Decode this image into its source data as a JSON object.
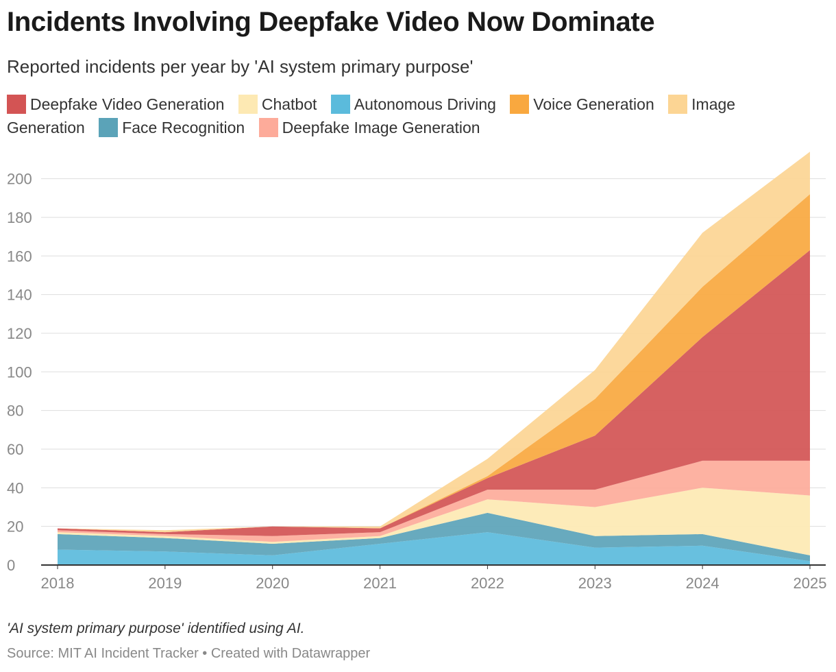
{
  "header": {
    "title": "Incidents Involving Deepfake Video Now Dominate",
    "subtitle": "Reported incidents per year by 'AI system primary purpose'"
  },
  "footer": {
    "note": "'AI system primary purpose' identified using AI.",
    "source": "Source: MIT AI Incident Tracker • Created with Datawrapper"
  },
  "chart_data": {
    "type": "area",
    "stacked": true,
    "title": "Incidents Involving Deepfake Video Now Dominate",
    "subtitle": "Reported incidents per year by 'AI system primary purpose'",
    "xlabel": "",
    "ylabel": "",
    "categories": [
      "2018",
      "2019",
      "2020",
      "2021",
      "2022",
      "2023",
      "2024",
      "2025"
    ],
    "ylim": [
      0,
      214
    ],
    "yticks": [
      0,
      20,
      40,
      60,
      80,
      100,
      120,
      140,
      160,
      180,
      200
    ],
    "grid": true,
    "legend_position": "top",
    "stack_order": [
      "Autonomous Driving",
      "Face Recognition",
      "Chatbot",
      "Deepfake Image Generation",
      "Deepfake Video Generation",
      "Voice Generation",
      "Image Generation"
    ],
    "series": [
      {
        "name": "Deepfake Video Generation",
        "color": "#d35454",
        "values": [
          1,
          1,
          5,
          2,
          6,
          28,
          64,
          109
        ]
      },
      {
        "name": "Chatbot",
        "color": "#fde9b3",
        "values": [
          1,
          1,
          1,
          1,
          7,
          15,
          24,
          31
        ]
      },
      {
        "name": "Autonomous Driving",
        "color": "#5bbbdc",
        "values": [
          8,
          7,
          5,
          11,
          17,
          9,
          10,
          2
        ]
      },
      {
        "name": "Voice Generation",
        "color": "#f9a83f",
        "values": [
          0,
          0,
          0,
          0,
          1,
          19,
          26,
          29
        ]
      },
      {
        "name": "Image Generation",
        "color": "#fcd594",
        "values": [
          0,
          1,
          0,
          1,
          9,
          15,
          28,
          22
        ]
      },
      {
        "name": "Face Recognition",
        "color": "#5ba3b8",
        "values": [
          8,
          7,
          6,
          3,
          10,
          6,
          6,
          3
        ]
      },
      {
        "name": "Deepfake Image Generation",
        "color": "#fdab9a",
        "values": [
          1,
          1,
          3,
          2,
          5,
          9,
          14,
          18
        ]
      }
    ]
  }
}
